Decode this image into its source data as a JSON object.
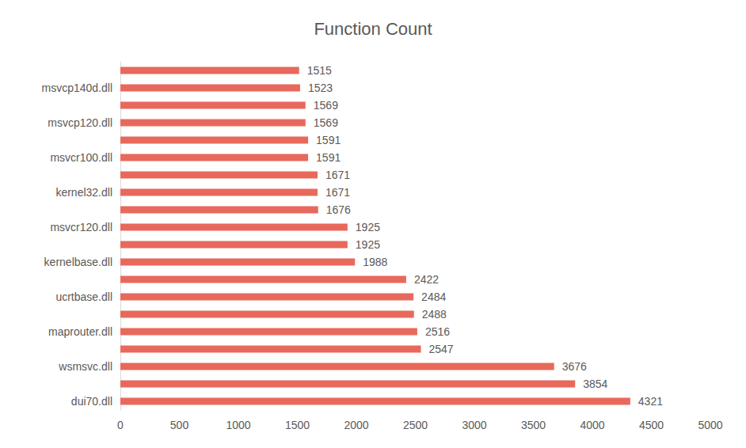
{
  "chart_data": {
    "type": "bar",
    "title": "Function Count",
    "orientation": "horizontal",
    "categories": [
      "dui70.dll",
      null,
      "wsmsvc.dll",
      null,
      "maprouter.dll",
      null,
      "ucrtbase.dll",
      null,
      "kernelbase.dll",
      null,
      "msvcr120.dll",
      null,
      "kernel32.dll",
      null,
      "msvcr100.dll",
      null,
      "msvcp120.dll",
      null,
      "msvcp140d.dll",
      null
    ],
    "values": [
      4321,
      3854,
      3676,
      2547,
      2516,
      2488,
      2484,
      2422,
      1988,
      1925,
      1925,
      1676,
      1671,
      1671,
      1591,
      1591,
      1569,
      1569,
      1523,
      1515
    ],
    "color": "#e8695c",
    "xlim": [
      0,
      5000
    ],
    "xticks": [
      0,
      500,
      1000,
      1500,
      2000,
      2500,
      3000,
      3500,
      4000,
      4500,
      5000
    ],
    "grid": false,
    "data_labels": true
  }
}
